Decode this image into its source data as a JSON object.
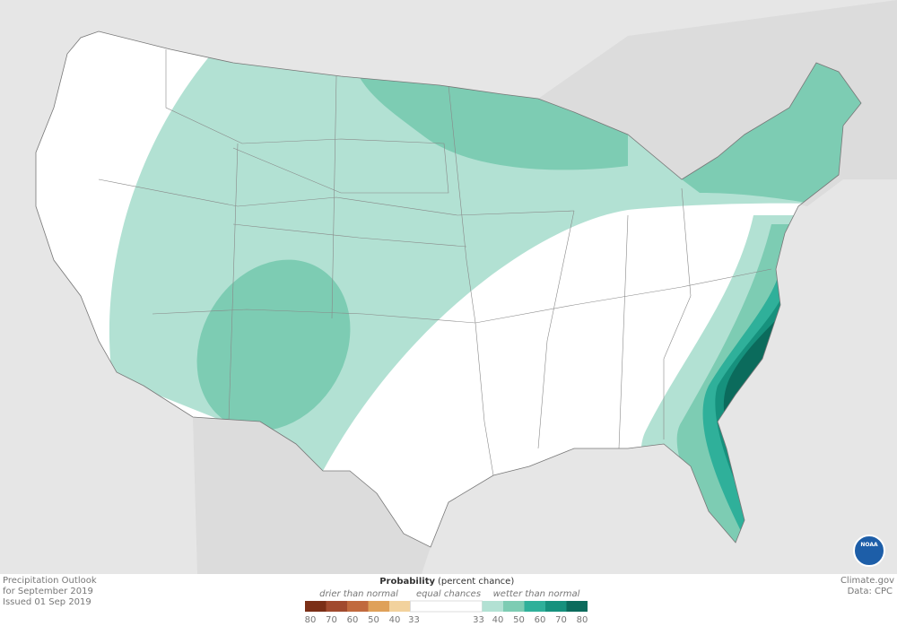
{
  "caption": {
    "line1": "Precipitation Outlook",
    "line2": "for September 2019",
    "line3": "Issued 01 Sep 2019"
  },
  "legend": {
    "title": "Probability",
    "subtitle": "(percent chance)",
    "drier_label": "drier than normal",
    "equal_label": "equal chances",
    "wetter_label": "wetter than normal",
    "drier": [
      {
        "value": 80,
        "color": "#7b2f17"
      },
      {
        "value": 70,
        "color": "#a14a2e"
      },
      {
        "value": 60,
        "color": "#c16a3e"
      },
      {
        "value": 50,
        "color": "#dfa159"
      },
      {
        "value": 40,
        "color": "#f2d29d"
      }
    ],
    "equal": {
      "lower": 33,
      "upper": 33,
      "color": "#ffffff"
    },
    "wetter": [
      {
        "value": 40,
        "color": "#b2e1d3"
      },
      {
        "value": 50,
        "color": "#7dccb3"
      },
      {
        "value": 60,
        "color": "#2fb09a"
      },
      {
        "value": 70,
        "color": "#16917d"
      },
      {
        "value": 80,
        "color": "#0b6b5c"
      }
    ]
  },
  "credit": {
    "source": "Climate.gov",
    "data": "Data: CPC",
    "logo": "NOAA"
  }
}
